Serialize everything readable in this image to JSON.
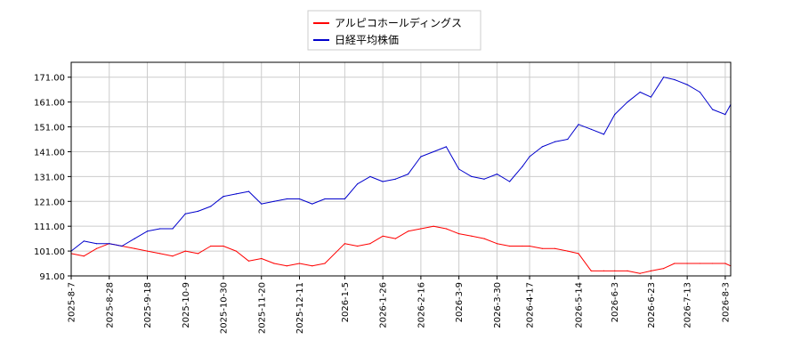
{
  "chart_data": {
    "type": "line",
    "title": "",
    "xlabel": "",
    "ylabel": "",
    "ylim": [
      91,
      177
    ],
    "grid": true,
    "legend_position": "top-center",
    "y_ticks": [
      "91.00",
      "101.00",
      "111.00",
      "121.00",
      "131.00",
      "141.00",
      "151.00",
      "161.00",
      "171.00"
    ],
    "x_ticks": [
      "2025-8-7",
      "2025-8-28",
      "2025-9-18",
      "2025-10-9",
      "2025-10-30",
      "2025-11-20",
      "2025-12-11",
      "2026-1-5",
      "2026-1-26",
      "2026-2-16",
      "2026-3-9",
      "2026-3-30",
      "2026-4-17",
      "2026-5-14",
      "2026-6-3",
      "2026-6-23",
      "2026-7-13",
      "2026-8-3"
    ],
    "series": [
      {
        "name": "アルピコホールディングス",
        "color": "#ff0000",
        "x": [
          "2025-8-7",
          "2025-8-14",
          "2025-8-21",
          "2025-8-28",
          "2025-9-4",
          "2025-9-11",
          "2025-9-18",
          "2025-9-25",
          "2025-10-2",
          "2025-10-9",
          "2025-10-16",
          "2025-10-23",
          "2025-10-30",
          "2025-11-6",
          "2025-11-13",
          "2025-11-20",
          "2025-11-27",
          "2025-12-4",
          "2025-12-11",
          "2025-12-18",
          "2025-12-25",
          "2026-1-5",
          "2026-1-12",
          "2026-1-19",
          "2026-1-26",
          "2026-2-2",
          "2026-2-9",
          "2026-2-16",
          "2026-2-23",
          "2026-3-2",
          "2026-3-9",
          "2026-3-16",
          "2026-3-23",
          "2026-3-30",
          "2026-4-6",
          "2026-4-13",
          "2026-4-17",
          "2026-4-24",
          "2026-5-1",
          "2026-5-8",
          "2026-5-14",
          "2026-5-21",
          "2026-5-28",
          "2026-6-3",
          "2026-6-10",
          "2026-6-17",
          "2026-6-23",
          "2026-6-30",
          "2026-7-6",
          "2026-7-13",
          "2026-7-20",
          "2026-7-27",
          "2026-8-3",
          "2026-8-6"
        ],
        "values": [
          100,
          99,
          102,
          104,
          103,
          102,
          101,
          100,
          99,
          101,
          100,
          103,
          103,
          101,
          97,
          98,
          96,
          95,
          96,
          95,
          96,
          104,
          103,
          104,
          107,
          106,
          109,
          110,
          111,
          110,
          108,
          107,
          106,
          104,
          103,
          103,
          103,
          102,
          102,
          101,
          100,
          93,
          93,
          93,
          93,
          92,
          93,
          94,
          96,
          96,
          96,
          96,
          96,
          95
        ]
      },
      {
        "name": "日経平均株価",
        "color": "#0000cc",
        "x": [
          "2025-8-7",
          "2025-8-14",
          "2025-8-21",
          "2025-8-28",
          "2025-9-4",
          "2025-9-11",
          "2025-9-18",
          "2025-9-25",
          "2025-10-2",
          "2025-10-9",
          "2025-10-16",
          "2025-10-23",
          "2025-10-30",
          "2025-11-6",
          "2025-11-13",
          "2025-11-20",
          "2025-11-27",
          "2025-12-4",
          "2025-12-11",
          "2025-12-18",
          "2025-12-25",
          "2026-1-5",
          "2026-1-12",
          "2026-1-19",
          "2026-1-26",
          "2026-2-2",
          "2026-2-9",
          "2026-2-16",
          "2026-2-23",
          "2026-3-2",
          "2026-3-9",
          "2026-3-16",
          "2026-3-23",
          "2026-3-30",
          "2026-4-6",
          "2026-4-13",
          "2026-4-17",
          "2026-4-24",
          "2026-5-1",
          "2026-5-8",
          "2026-5-14",
          "2026-5-21",
          "2026-5-28",
          "2026-6-3",
          "2026-6-10",
          "2026-6-17",
          "2026-6-23",
          "2026-6-30",
          "2026-7-6",
          "2026-7-13",
          "2026-7-20",
          "2026-7-27",
          "2026-8-3",
          "2026-8-6"
        ],
        "values": [
          101,
          105,
          104,
          104,
          103,
          106,
          109,
          110,
          110,
          116,
          117,
          119,
          123,
          124,
          125,
          120,
          121,
          122,
          122,
          120,
          122,
          122,
          128,
          131,
          129,
          130,
          132,
          139,
          141,
          143,
          134,
          131,
          130,
          132,
          129,
          135,
          139,
          143,
          145,
          146,
          152,
          150,
          148,
          156,
          161,
          165,
          163,
          171,
          170,
          168,
          165,
          158,
          156,
          160
        ]
      }
    ]
  }
}
